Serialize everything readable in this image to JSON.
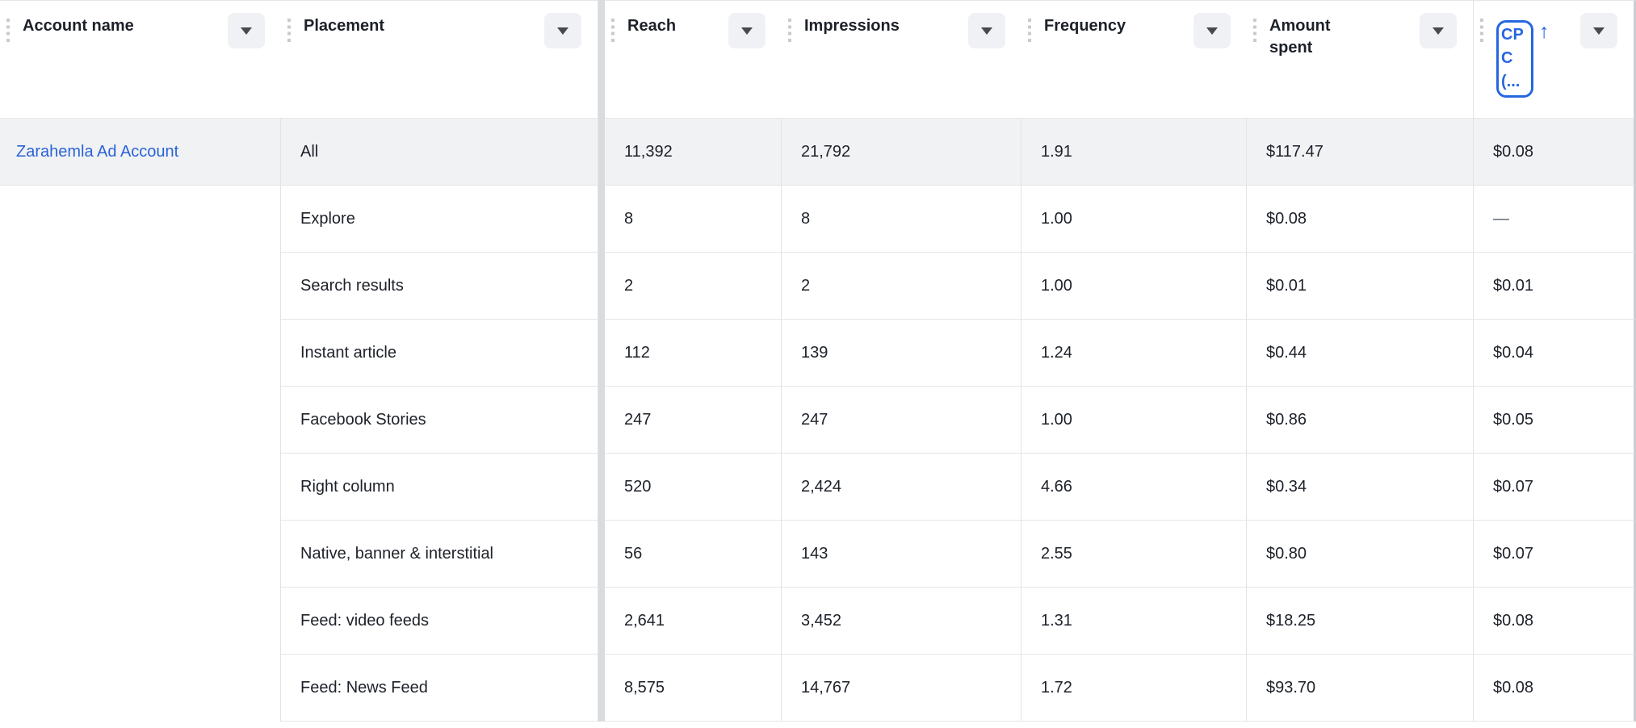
{
  "table": {
    "columns": [
      {
        "label": "Account name"
      },
      {
        "label": "Placement"
      },
      {
        "label": "Reach"
      },
      {
        "label": "Impressions"
      },
      {
        "label": "Frequency"
      },
      {
        "label": "Amount spent"
      },
      {
        "label": "CPC (...",
        "sorted": "ascending"
      }
    ],
    "account_name": "Zarahemla Ad Account",
    "rows": [
      {
        "placement": "All",
        "reach": "11,392",
        "impressions": "21,792",
        "frequency": "1.91",
        "amount_spent": "$117.47",
        "cpc": "$0.08"
      },
      {
        "placement": "Explore",
        "reach": "8",
        "impressions": "8",
        "frequency": "1.00",
        "amount_spent": "$0.08",
        "cpc": "—"
      },
      {
        "placement": "Search results",
        "reach": "2",
        "impressions": "2",
        "frequency": "1.00",
        "amount_spent": "$0.01",
        "cpc": "$0.01"
      },
      {
        "placement": "Instant article",
        "reach": "112",
        "impressions": "139",
        "frequency": "1.24",
        "amount_spent": "$0.44",
        "cpc": "$0.04"
      },
      {
        "placement": "Facebook Stories",
        "reach": "247",
        "impressions": "247",
        "frequency": "1.00",
        "amount_spent": "$0.86",
        "cpc": "$0.05"
      },
      {
        "placement": "Right column",
        "reach": "520",
        "impressions": "2,424",
        "frequency": "4.66",
        "amount_spent": "$0.34",
        "cpc": "$0.07"
      },
      {
        "placement": "Native, banner & interstitial",
        "reach": "56",
        "impressions": "143",
        "frequency": "2.55",
        "amount_spent": "$0.80",
        "cpc": "$0.07"
      },
      {
        "placement": "Feed: video feeds",
        "reach": "2,641",
        "impressions": "3,452",
        "frequency": "1.31",
        "amount_spent": "$18.25",
        "cpc": "$0.08"
      },
      {
        "placement": "Feed: News Feed",
        "reach": "8,575",
        "impressions": "14,767",
        "frequency": "1.72",
        "amount_spent": "$93.70",
        "cpc": "$0.08"
      }
    ]
  },
  "icons": {
    "column_menu": "caret-down",
    "drag_handle": "vertical-grip-dots",
    "sort_asc_glyph": "↑"
  },
  "colors": {
    "link_blue": "#2b63d8",
    "accent_blue": "#2666e0",
    "row_highlight": "#f1f2f4",
    "frozen_separator": "#d9dbde"
  }
}
